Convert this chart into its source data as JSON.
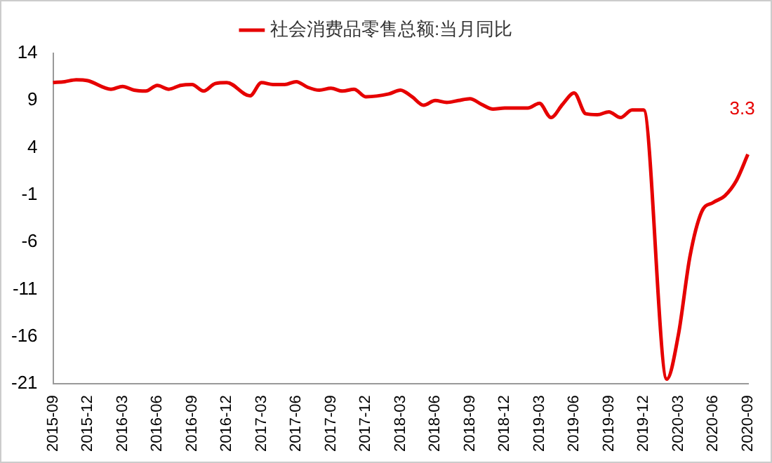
{
  "chart_data": {
    "type": "line",
    "categories": [
      "2015-09",
      null,
      null,
      "2015-12",
      null,
      null,
      "2016-03",
      null,
      null,
      "2016-06",
      null,
      null,
      "2016-09",
      null,
      null,
      "2016-12",
      null,
      null,
      "2017-03",
      null,
      null,
      "2017-06",
      null,
      null,
      "2017-09",
      null,
      null,
      "2017-12",
      null,
      null,
      "2018-03",
      null,
      null,
      "2018-06",
      null,
      null,
      "2018-09",
      null,
      null,
      "2018-12",
      null,
      null,
      "2019-03",
      null,
      null,
      "2019-06",
      null,
      null,
      "2019-09",
      null,
      null,
      "2019-12",
      null,
      null,
      "2020-03",
      null,
      null,
      "2020-06",
      null,
      null,
      "2020-09"
    ],
    "series": [
      {
        "name": "社会消费品零售总额:当月同比",
        "color": "#e60000",
        "values": [
          10.9,
          11.0,
          11.2,
          11.1,
          null,
          10.2,
          10.5,
          10.1,
          10.0,
          10.6,
          10.2,
          10.6,
          10.7,
          10.0,
          10.8,
          10.9,
          null,
          9.5,
          10.9,
          10.7,
          10.7,
          11.0,
          10.4,
          10.1,
          10.3,
          10.0,
          10.2,
          9.4,
          null,
          9.7,
          10.1,
          9.4,
          8.5,
          9.0,
          8.8,
          9.0,
          9.2,
          8.6,
          8.1,
          8.2,
          null,
          8.2,
          8.7,
          7.2,
          8.6,
          9.8,
          7.6,
          7.5,
          7.8,
          7.2,
          8.0,
          8.0,
          null,
          -20.5,
          -15.8,
          -7.5,
          -2.8,
          -1.8,
          -1.1,
          0.5,
          3.3
        ]
      }
    ],
    "ylim": [
      -21,
      14
    ],
    "yticks": [
      -21,
      -16,
      -11,
      -6,
      -1,
      4,
      9,
      14
    ],
    "grid": false,
    "legend": "top",
    "marker": "none",
    "line_style": "solid",
    "annotations": [
      {
        "text": "3.3",
        "x": "2020-09",
        "y": 3.3
      }
    ]
  }
}
